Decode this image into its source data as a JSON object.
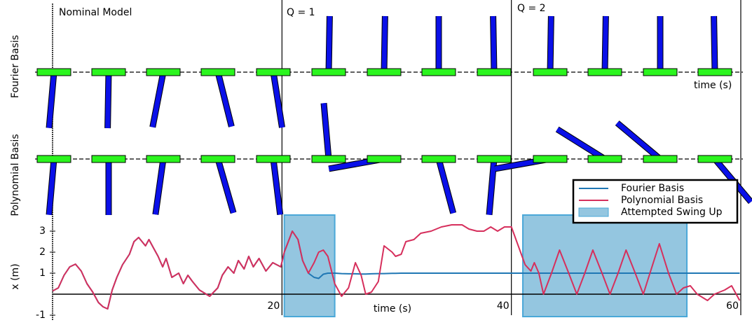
{
  "chart_data": {
    "type": "line",
    "annotations": {
      "nominal": "Nominal Model",
      "q1": "Q = 1",
      "q2": "Q = 2"
    },
    "row_labels": [
      "Fourier Basis",
      "Polynomial Basis"
    ],
    "top_xlabel": "time (s)",
    "xlabel": "time (s)",
    "ylabel": "x (m)",
    "x": [
      0,
      0.5,
      1,
      1.5,
      2,
      2.5,
      3,
      3.5,
      4,
      4.4,
      4.8,
      5.2,
      5.6,
      6.1,
      6.7,
      7.1,
      7.5,
      8.1,
      8.4,
      8.8,
      9.2,
      9.6,
      9.9,
      10.4,
      11,
      11.4,
      11.8,
      12.2,
      12.8,
      13.7,
      14.4,
      14.8,
      15.3,
      15.8,
      16.2,
      16.7,
      17.1,
      17.5,
      18,
      18.6,
      19.2,
      19.9,
      20.2,
      20.9,
      21.4,
      21.8,
      22.3,
      22.8,
      23.2,
      23.6,
      24,
      24.6,
      25.2,
      25.8,
      26.4,
      26.9,
      27.3,
      27.8,
      28.4,
      28.9,
      29.6,
      29.9,
      30.4,
      30.8,
      31.5,
      32.1,
      33,
      33.9,
      34.8,
      35.7,
      36.3,
      37,
      37.6,
      38.2,
      38.8,
      39.4,
      40,
      40.6,
      41.2,
      41.7,
      42,
      42.4,
      42.8,
      43.5,
      44.2,
      45,
      45.7,
      46.4,
      47.1,
      47.9,
      48.6,
      49.3,
      50,
      50.8,
      51.5,
      52.2,
      52.9,
      53.7,
      54.4,
      55,
      55.6,
      56.2,
      57.1,
      57.7,
      58.6,
      59.2,
      59.9
    ],
    "series": [
      {
        "name": "Fourier Basis",
        "color": "#1f77b4",
        "values": [
          0.15,
          0.3,
          0.9,
          1.3,
          1.43,
          1.1,
          0.5,
          0.1,
          -0.4,
          -0.6,
          -0.7,
          0.2,
          0.8,
          1.4,
          1.9,
          2.5,
          2.7,
          2.3,
          2.6,
          2.2,
          1.8,
          1.3,
          1.7,
          0.8,
          1.0,
          0.5,
          0.9,
          0.6,
          0.2,
          -0.1,
          0.3,
          0.9,
          1.3,
          1.0,
          1.6,
          1.2,
          1.8,
          1.3,
          1.7,
          1.1,
          1.5,
          1.3,
          2.0,
          3.0,
          2.6,
          1.6,
          1.0,
          0.8,
          0.75,
          0.95,
          1.0,
          1.0,
          0.98,
          0.97,
          0.97,
          0.96,
          0.96,
          0.97,
          0.98,
          0.98,
          0.99,
          0.99,
          1.0,
          1.0,
          1.0,
          1.0,
          1.0,
          1.0,
          1.0,
          1.0,
          1.0,
          1.0,
          1.0,
          1.0,
          1.0,
          1.0,
          1.0,
          1.0,
          1.0,
          1.0,
          1.0,
          1.0,
          1.0,
          1.0,
          1.0,
          1.0,
          1.0,
          1.0,
          1.0,
          1.0,
          1.0,
          1.0,
          1.0,
          1.0,
          1.0,
          1.0,
          1.0,
          1.0,
          1.0,
          1.0,
          1.0,
          1.0,
          1.0,
          1.0,
          1.0,
          1.0,
          1.0
        ]
      },
      {
        "name": "Polynomial Basis",
        "color": "#d62f5c",
        "values": [
          0.15,
          0.3,
          0.9,
          1.3,
          1.43,
          1.1,
          0.5,
          0.1,
          -0.4,
          -0.6,
          -0.7,
          0.2,
          0.8,
          1.4,
          1.9,
          2.5,
          2.7,
          2.3,
          2.6,
          2.2,
          1.8,
          1.3,
          1.7,
          0.8,
          1.0,
          0.5,
          0.9,
          0.6,
          0.2,
          -0.1,
          0.3,
          0.9,
          1.3,
          1.0,
          1.6,
          1.2,
          1.8,
          1.3,
          1.7,
          1.1,
          1.5,
          1.3,
          2.0,
          3.0,
          2.6,
          1.6,
          1.0,
          1.5,
          2.0,
          2.1,
          1.8,
          0.5,
          -0.1,
          0.3,
          1.5,
          0.9,
          0.0,
          0.1,
          0.6,
          2.3,
          2.0,
          1.8,
          1.9,
          2.5,
          2.6,
          2.9,
          3.0,
          3.2,
          3.3,
          3.3,
          3.1,
          3.0,
          3.0,
          3.2,
          3.0,
          3.2,
          3.2,
          2.3,
          1.4,
          1.1,
          1.5,
          1.0,
          0.0,
          1.0,
          2.1,
          1.0,
          0.0,
          1.0,
          2.1,
          1.0,
          0.0,
          1.0,
          2.1,
          1.0,
          0.0,
          1.2,
          2.4,
          1.0,
          0.0,
          0.3,
          0.4,
          0.0,
          -0.3,
          0.0,
          0.2,
          0.4,
          -0.3
        ]
      }
    ],
    "shaded": {
      "name": "Attempted Swing Up",
      "color": "#5aa7cf",
      "ranges": [
        [
          20.2,
          24.6
        ],
        [
          41,
          55.3
        ]
      ]
    },
    "xlim": [
      0,
      60
    ],
    "xticks": [
      20,
      40,
      60
    ],
    "ylim": [
      -1.2,
      3.8
    ],
    "yticks": [
      -1,
      1,
      2,
      3
    ],
    "legend": "upper right"
  }
}
